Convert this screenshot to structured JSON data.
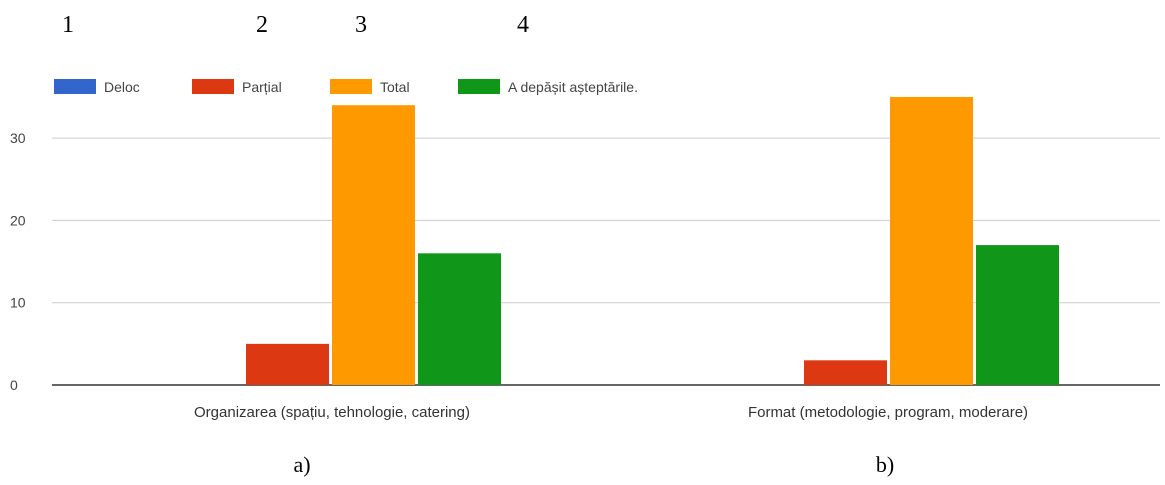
{
  "top_numbers": [
    "1",
    "2",
    "3",
    "4"
  ],
  "panel_labels": [
    "a)",
    "b)"
  ],
  "chart_data": {
    "type": "bar",
    "title": "",
    "xlabel": "",
    "ylabel": "",
    "categories": [
      "Organizarea (spațiu, tehnologie, catering)",
      "Format (metodologie, program, moderare)"
    ],
    "series": [
      {
        "name": "Deloc",
        "color": "#3366cc",
        "values": [
          0,
          0
        ]
      },
      {
        "name": "Parțial",
        "color": "#dc3912",
        "values": [
          5,
          3
        ]
      },
      {
        "name": "Total",
        "color": "#ff9900",
        "values": [
          34,
          35
        ]
      },
      {
        "name": "A depășit așteptările.",
        "color": "#109618",
        "values": [
          16,
          17
        ]
      }
    ],
    "ylim": [
      0,
      35
    ],
    "yticks": [
      0,
      10,
      20,
      30
    ],
    "grid": true,
    "legend_position": "top-left"
  }
}
